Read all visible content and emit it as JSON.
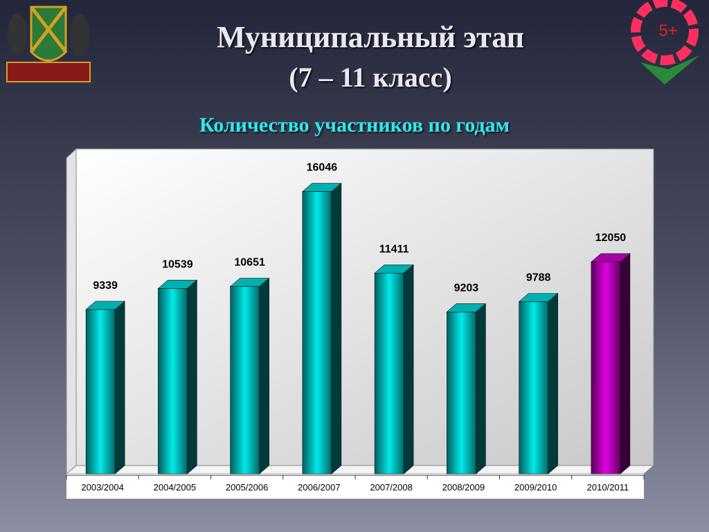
{
  "title": "Муниципальный этап",
  "title_line2": "(7 – 11 класс)",
  "logo_text": "5+",
  "chart_data": {
    "type": "bar3d",
    "title": "Количество участников по годам",
    "categories": [
      "2003/2004",
      "2004/2005",
      "2005/2006",
      "2006/2007",
      "2007/2008",
      "2008/2009",
      "2009/2010",
      "2010/2011"
    ],
    "values": [
      9339,
      10539,
      10651,
      16046,
      11411,
      9203,
      9788,
      12050
    ],
    "colors": [
      "#00eaea",
      "#00eaea",
      "#00eaea",
      "#00eaea",
      "#00eaea",
      "#00eaea",
      "#00eaea",
      "#e000e0"
    ],
    "ylim": [
      0,
      18000
    ]
  }
}
